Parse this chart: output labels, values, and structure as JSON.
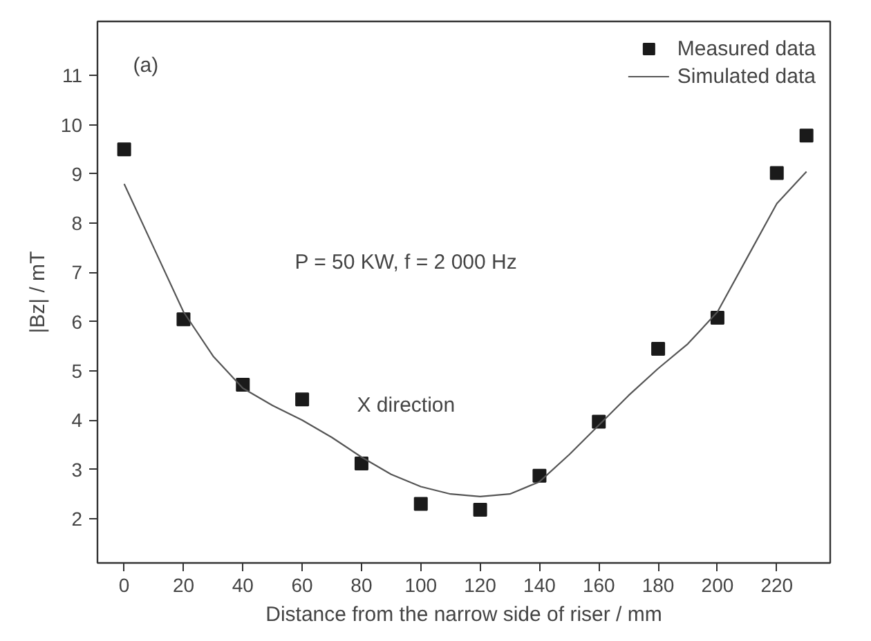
{
  "chart_data": {
    "type": "scatter",
    "xlabel": "Distance from the narrow side of riser / mm",
    "ylabel": "|Bz| / mT",
    "xlim": [
      -9,
      238
    ],
    "ylim": [
      1.1,
      12.1
    ],
    "xticks": [
      0,
      20,
      40,
      60,
      80,
      100,
      120,
      140,
      160,
      180,
      200,
      220
    ],
    "yticks": [
      2,
      3,
      4,
      5,
      6,
      7,
      8,
      9,
      10,
      11
    ],
    "grid": false,
    "legend": "top right",
    "series": [
      {
        "name": "Measured data",
        "marker": "square",
        "color": "#1a1a1a",
        "x": [
          0,
          20,
          40,
          60,
          80,
          100,
          120,
          140,
          160,
          180,
          200,
          220,
          230
        ],
        "values": [
          9.5,
          6.05,
          4.72,
          4.42,
          3.12,
          2.3,
          2.18,
          2.87,
          3.97,
          5.45,
          6.08,
          9.02,
          9.78
        ]
      },
      {
        "name": "Simulated data",
        "type": "line",
        "color": "#555555",
        "line_style": "solid",
        "x": [
          0,
          10,
          20,
          30,
          40,
          50,
          60,
          70,
          80,
          90,
          100,
          110,
          120,
          130,
          140,
          150,
          160,
          170,
          180,
          190,
          200,
          210,
          220,
          230
        ],
        "values": [
          8.8,
          7.5,
          6.2,
          5.3,
          4.65,
          4.3,
          4.0,
          3.65,
          3.25,
          2.9,
          2.65,
          2.5,
          2.45,
          2.5,
          2.75,
          3.3,
          3.9,
          4.5,
          5.05,
          5.55,
          6.2,
          7.3,
          8.4,
          9.05
        ]
      }
    ],
    "annotations": [
      "(a)",
      "P = 50 KW, f = 2 000 Hz",
      "X direction"
    ]
  }
}
